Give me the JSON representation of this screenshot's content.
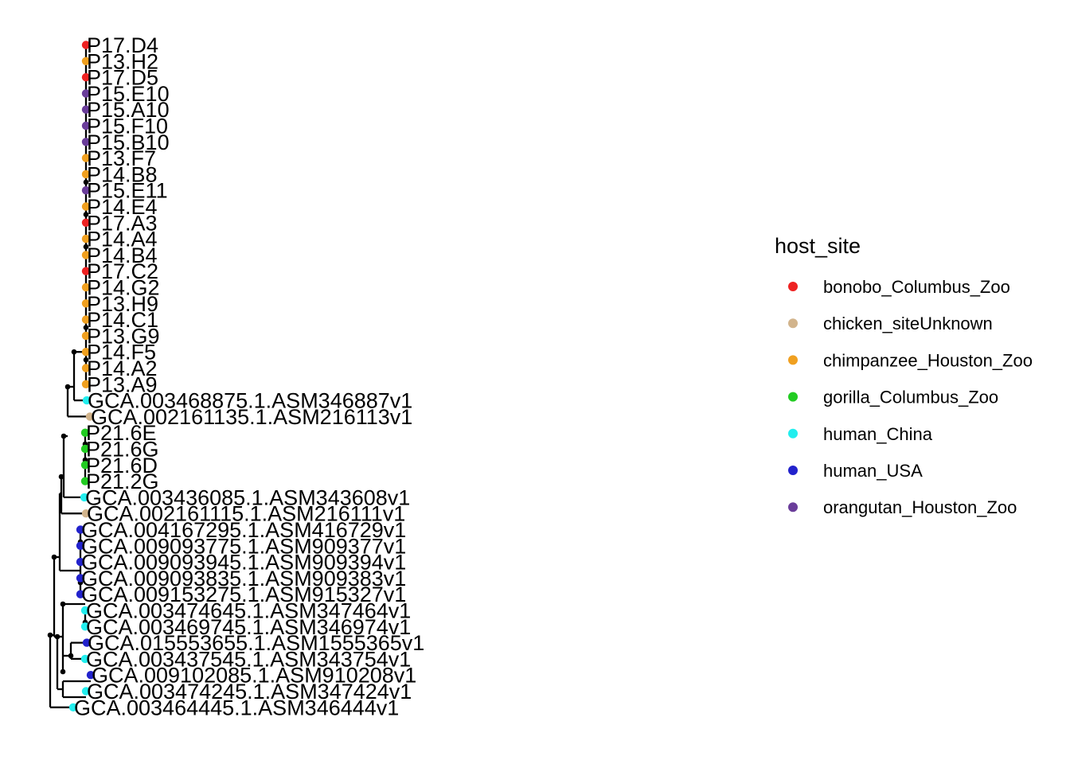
{
  "legend": {
    "title": "host_site",
    "items": [
      {
        "label": "bonobo_Columbus_Zoo",
        "color": "#ee2222"
      },
      {
        "label": "chicken_siteUnknown",
        "color": "#d2b48c"
      },
      {
        "label": "chimpanzee_Houston_Zoo",
        "color": "#f0a020"
      },
      {
        "label": "gorilla_Columbus_Zoo",
        "color": "#22cc22"
      },
      {
        "label": "human_China",
        "color": "#22eeee"
      },
      {
        "label": "human_USA",
        "color": "#2222cc"
      },
      {
        "label": "orangutan_Houston_Zoo",
        "color": "#6a3d9a"
      }
    ]
  },
  "tips": [
    {
      "label": "P17.D4",
      "host": "bonobo_Columbus_Zoo"
    },
    {
      "label": "P13.H2",
      "host": "chimpanzee_Houston_Zoo"
    },
    {
      "label": "P17.D5",
      "host": "bonobo_Columbus_Zoo"
    },
    {
      "label": "P15.E10",
      "host": "orangutan_Houston_Zoo"
    },
    {
      "label": "P15.A10",
      "host": "orangutan_Houston_Zoo"
    },
    {
      "label": "P15.F10",
      "host": "orangutan_Houston_Zoo"
    },
    {
      "label": "P15.B10",
      "host": "orangutan_Houston_Zoo"
    },
    {
      "label": "P13.F7",
      "host": "chimpanzee_Houston_Zoo"
    },
    {
      "label": "P14.B8",
      "host": "chimpanzee_Houston_Zoo"
    },
    {
      "label": "P15.E11",
      "host": "orangutan_Houston_Zoo"
    },
    {
      "label": "P14.E4",
      "host": "chimpanzee_Houston_Zoo"
    },
    {
      "label": "P17.A3",
      "host": "bonobo_Columbus_Zoo"
    },
    {
      "label": "P14.A4",
      "host": "chimpanzee_Houston_Zoo"
    },
    {
      "label": "P14.B4",
      "host": "chimpanzee_Houston_Zoo"
    },
    {
      "label": "P17.C2",
      "host": "bonobo_Columbus_Zoo"
    },
    {
      "label": "P14.G2",
      "host": "chimpanzee_Houston_Zoo"
    },
    {
      "label": "P13.H9",
      "host": "chimpanzee_Houston_Zoo"
    },
    {
      "label": "P14.C1",
      "host": "chimpanzee_Houston_Zoo"
    },
    {
      "label": "P13.G9",
      "host": "chimpanzee_Houston_Zoo"
    },
    {
      "label": "P14.F5",
      "host": "chimpanzee_Houston_Zoo"
    },
    {
      "label": "P14.A2",
      "host": "chimpanzee_Houston_Zoo"
    },
    {
      "label": "P13.A9",
      "host": "chimpanzee_Houston_Zoo"
    },
    {
      "label": "GCA.003468875.1.ASM346887v1",
      "host": "human_China"
    },
    {
      "label": "GCA.002161135.1.ASM216113v1",
      "host": "chicken_siteUnknown"
    },
    {
      "label": "P21.6E",
      "host": "gorilla_Columbus_Zoo"
    },
    {
      "label": "P21.6G",
      "host": "gorilla_Columbus_Zoo"
    },
    {
      "label": "P21.6D",
      "host": "gorilla_Columbus_Zoo"
    },
    {
      "label": "P21.2G",
      "host": "gorilla_Columbus_Zoo"
    },
    {
      "label": "GCA.003436085.1.ASM343608v1",
      "host": "human_China"
    },
    {
      "label": "GCA.002161115.1.ASM216111v1",
      "host": "chicken_siteUnknown"
    },
    {
      "label": "GCA.004167295.1.ASM416729v1",
      "host": "human_USA"
    },
    {
      "label": "GCA.009093775.1.ASM909377v1",
      "host": "human_USA"
    },
    {
      "label": "GCA.009093945.1.ASM909394v1",
      "host": "human_USA"
    },
    {
      "label": "GCA.009093835.1.ASM909383v1",
      "host": "human_USA"
    },
    {
      "label": "GCA.009153275.1.ASM915327v1",
      "host": "human_USA"
    },
    {
      "label": "GCA.003474645.1.ASM347464v1",
      "host": "human_China"
    },
    {
      "label": "GCA.003469745.1.ASM346974v1",
      "host": "human_China"
    },
    {
      "label": "GCA.015553655.1.ASM1555365v1",
      "host": "human_USA"
    },
    {
      "label": "GCA.003437545.1.ASM343754v1",
      "host": "human_China"
    },
    {
      "label": "GCA.009102085.1.ASM910208v1",
      "host": "human_USA"
    },
    {
      "label": "GCA.003474245.1.ASM347424v1",
      "host": "human_China"
    },
    {
      "label": "GCA.003464445.1.ASM346444v1",
      "host": "human_China"
    }
  ]
}
